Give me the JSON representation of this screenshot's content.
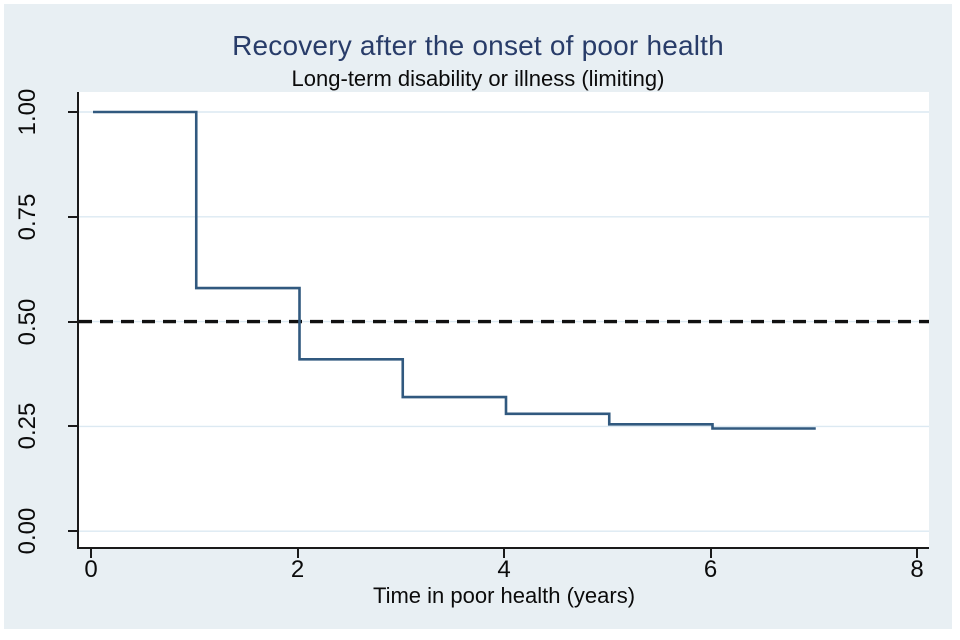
{
  "figure": {
    "title": "Recovery after the onset of poor health",
    "subtitle": "Long-term disability or illness (limiting)"
  },
  "chart_data": {
    "type": "line",
    "subtype": "kaplan-meier-step-function",
    "title": "Recovery after the onset of poor health",
    "subtitle": "Long-term disability or illness (limiting)",
    "xlabel": "Time in poor health (years)",
    "ylabel": "",
    "xlim": [
      0,
      8
    ],
    "ylim": [
      0.0,
      1.0
    ],
    "x_ticks": [
      0,
      2,
      4,
      6,
      8
    ],
    "y_ticks": [
      1.0,
      0.75,
      0.5,
      0.25,
      0.0
    ],
    "y_tick_labels": [
      "1.00",
      "0.75",
      "0.50",
      "0.25",
      "0.00"
    ],
    "grid": true,
    "legend": "none",
    "reference_line": {
      "y": 0.5,
      "style": "dashed",
      "color": "#111111"
    },
    "series": [
      {
        "name": "survivor-function",
        "color": "#31597f",
        "step_points": [
          {
            "t": 0,
            "s": 1.0
          },
          {
            "t": 1,
            "s": 0.58
          },
          {
            "t": 2,
            "s": 0.41
          },
          {
            "t": 3,
            "s": 0.32
          },
          {
            "t": 4,
            "s": 0.28
          },
          {
            "t": 5,
            "s": 0.255
          },
          {
            "t": 6,
            "s": 0.245
          }
        ],
        "end_t": 7
      }
    ],
    "colors": {
      "figure_background": "#e8eff3",
      "plot_background": "#ffffff",
      "gridline": "#dce9f2",
      "axis": "#1a1a1a",
      "title": "#283c69",
      "text": "#0b0b0b"
    }
  }
}
